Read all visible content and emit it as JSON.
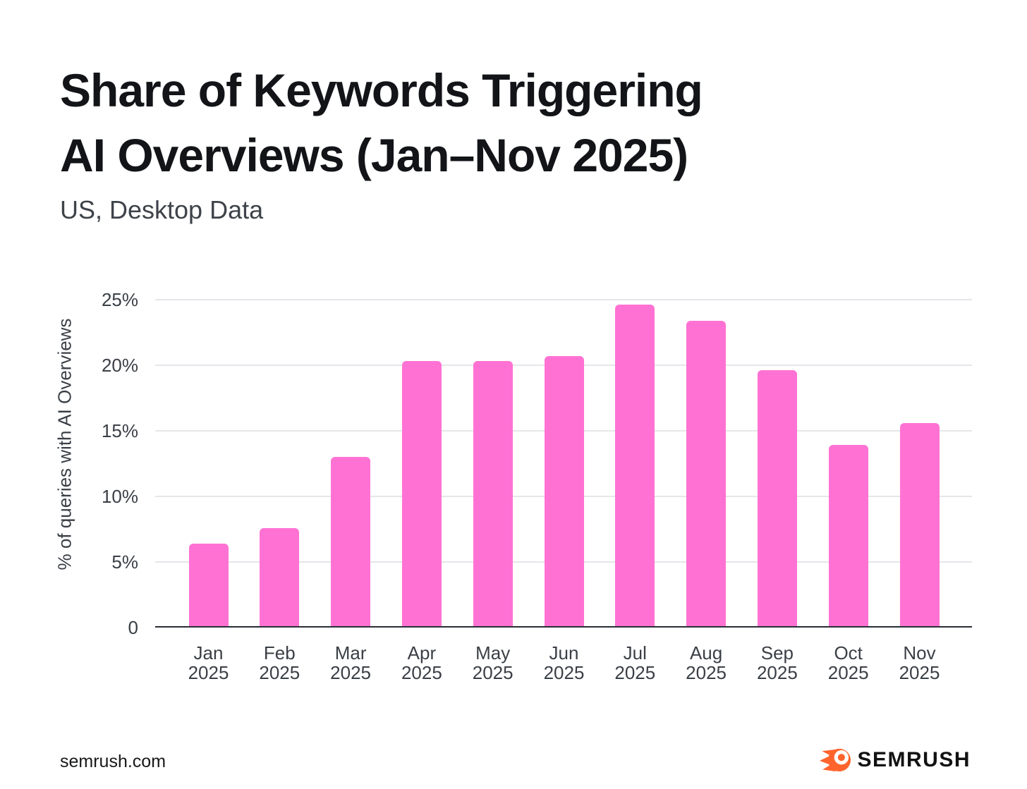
{
  "title": {
    "line1": "Share of Keywords Triggering",
    "line2": "AI Overviews (Jan–Nov 2025)"
  },
  "subtitle": "US, Desktop Data",
  "footer": {
    "site": "semrush.com",
    "logo_text": "SEMRUSH",
    "logo_color": "#FF642D"
  },
  "chart_data": {
    "type": "bar",
    "title": "Share of Keywords Triggering AI Overviews (Jan–Nov 2025)",
    "subtitle": "US, Desktop Data",
    "categories": [
      "Jan 2025",
      "Feb 2025",
      "Mar 2025",
      "Apr 2025",
      "May 2025",
      "Jun 2025",
      "Jul 2025",
      "Aug 2025",
      "Sep 2025",
      "Oct 2025",
      "Nov 2025"
    ],
    "values": [
      6.4,
      7.6,
      13.0,
      20.3,
      20.3,
      20.7,
      24.6,
      23.4,
      19.6,
      13.9,
      15.6
    ],
    "xlabel": "",
    "ylabel": "% of queries with AI Overviews",
    "ylim": [
      0,
      25
    ],
    "yticks": [
      {
        "value": 0,
        "label": "0"
      },
      {
        "value": 5,
        "label": "5%"
      },
      {
        "value": 10,
        "label": "10%"
      },
      {
        "value": 15,
        "label": "15%"
      },
      {
        "value": 20,
        "label": "20%"
      },
      {
        "value": 25,
        "label": "25%"
      }
    ],
    "grid": "horizontal",
    "legend": "none",
    "bar_color": "#FF72D3",
    "gridline_color": "#e4e6e9",
    "axis_line_color": "#2a2e34"
  }
}
